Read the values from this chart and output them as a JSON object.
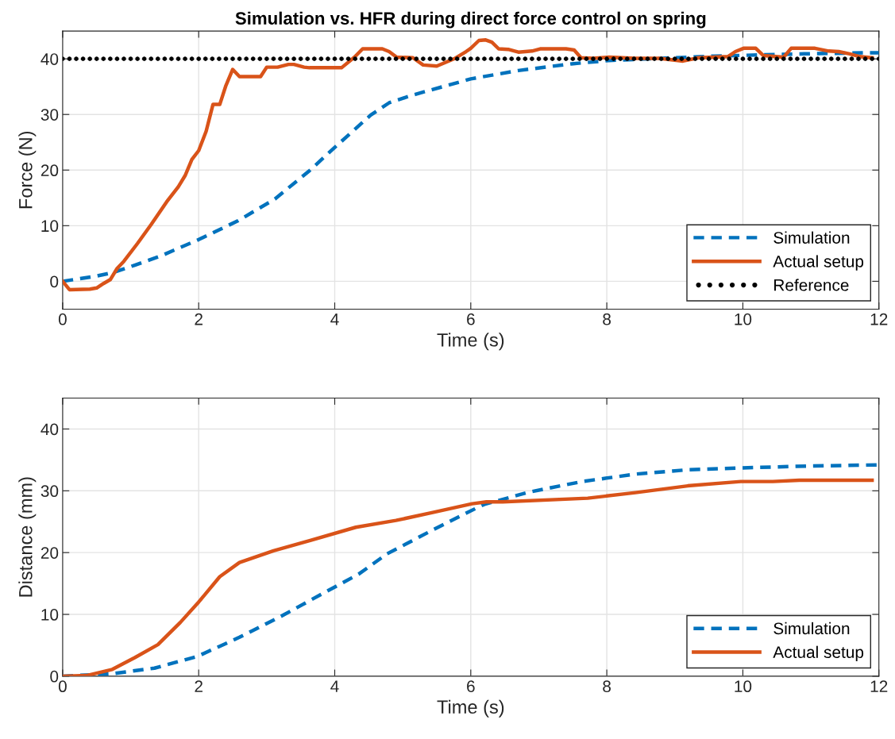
{
  "chart_data": [
    {
      "type": "line",
      "title": "Simulation vs. HFR during direct force control on spring",
      "xlabel": "Time (s)",
      "ylabel": "Force (N)",
      "xlim": [
        0,
        12
      ],
      "xticks": [
        0,
        2,
        4,
        6,
        8,
        10,
        12
      ],
      "ylim": [
        -5,
        45
      ],
      "yticks": [
        0,
        10,
        20,
        30,
        40
      ],
      "grid": true,
      "legend": "bottom right",
      "series": [
        {
          "name": "Simulation",
          "color": "#0072bd",
          "line_style": "dashed",
          "x": [
            0,
            0.48,
            0.75,
            1.06,
            1.45,
            2.0,
            2.58,
            3.12,
            3.63,
            4.02,
            4.53,
            4.8,
            5.15,
            6.0,
            6.7,
            7.48,
            8.03,
            9.58,
            10.9,
            11.88,
            12
          ],
          "values": [
            0,
            0.9,
            1.6,
            2.9,
            4.6,
            7.5,
            10.9,
            14.8,
            19.9,
            24.3,
            29.9,
            32.1,
            33.5,
            36.4,
            37.9,
            39.1,
            39.7,
            40.5,
            40.9,
            41.1,
            41.1
          ]
        },
        {
          "name": "Actual setup",
          "color": "#d95319",
          "line_style": "solid",
          "x": [
            0,
            0.1,
            0.4,
            0.5,
            0.6,
            0.7,
            0.8,
            0.9,
            1.1,
            1.3,
            1.53,
            1.7,
            1.8,
            1.9,
            2.0,
            2.11,
            2.21,
            2.31,
            2.4,
            2.5,
            2.6,
            2.91,
            3.0,
            3.16,
            3.32,
            3.4,
            3.55,
            3.63,
            4.1,
            4.29,
            4.41,
            4.7,
            4.8,
            4.91,
            5.15,
            5.3,
            5.5,
            5.77,
            5.93,
            6.0,
            6.12,
            6.22,
            6.31,
            6.41,
            6.55,
            6.7,
            6.9,
            7.02,
            7.4,
            7.52,
            7.62,
            7.8,
            8.03,
            8.42,
            8.77,
            9.12,
            9.35,
            9.78,
            9.89,
            10.01,
            10.19,
            10.3,
            10.6,
            10.71,
            11.06,
            11.26,
            11.41,
            11.57,
            11.72,
            11.9
          ],
          "values": [
            0,
            -1.5,
            -1.4,
            -1.2,
            -0.4,
            0.3,
            2.3,
            3.6,
            6.8,
            10.2,
            14.3,
            17,
            19,
            21.9,
            23.5,
            27,
            31.8,
            31.8,
            35.2,
            38.1,
            36.8,
            36.8,
            38.5,
            38.5,
            39,
            39,
            38.5,
            38.4,
            38.4,
            40.3,
            41.8,
            41.8,
            41.3,
            40.3,
            40.2,
            38.9,
            38.7,
            40.1,
            41.3,
            41.9,
            43.3,
            43.4,
            43.0,
            41.8,
            41.7,
            41.2,
            41.4,
            41.8,
            41.8,
            41.6,
            40.2,
            40.1,
            40.3,
            40.1,
            40.1,
            39.6,
            40.2,
            40.4,
            41.3,
            41.9,
            41.9,
            40.6,
            40.3,
            41.9,
            41.9,
            41.4,
            41.3,
            40.9,
            40.4,
            40.2
          ]
        },
        {
          "name": "Reference",
          "type": "scatter",
          "marker": "circle",
          "color": "#000000",
          "x": [
            0,
            0.1,
            0.2,
            0.3,
            0.4,
            0.5,
            0.6,
            0.7,
            0.8,
            0.9,
            1,
            1.1,
            1.2,
            1.3,
            1.4,
            1.5,
            1.6,
            1.7,
            1.8,
            1.9,
            2,
            2.1,
            2.2,
            2.3,
            2.4,
            2.5,
            2.6,
            2.7,
            2.8,
            2.9,
            3,
            3.1,
            3.2,
            3.3,
            3.4,
            3.5,
            3.6,
            3.7,
            3.8,
            3.9,
            4,
            4.1,
            4.2,
            4.3,
            4.4,
            4.5,
            4.6,
            4.7,
            4.8,
            4.9,
            5,
            5.1,
            5.2,
            5.3,
            5.4,
            5.5,
            5.6,
            5.7,
            5.8,
            5.9,
            6,
            6.1,
            6.2,
            6.3,
            6.4,
            6.5,
            6.6,
            6.7,
            6.8,
            6.9,
            7,
            7.1,
            7.2,
            7.3,
            7.4,
            7.5,
            7.6,
            7.7,
            7.8,
            7.9,
            8,
            8.1,
            8.2,
            8.3,
            8.4,
            8.5,
            8.6,
            8.7,
            8.8,
            8.9,
            9,
            9.1,
            9.2,
            9.3,
            9.4,
            9.5,
            9.6,
            9.7,
            9.8,
            9.9,
            10,
            10.1,
            10.2,
            10.3,
            10.4,
            10.5,
            10.6,
            10.7,
            10.8,
            10.9,
            11,
            11.1,
            11.2,
            11.3,
            11.4,
            11.5,
            11.6,
            11.7,
            11.8,
            11.9,
            12
          ],
          "values": [
            40,
            40,
            40,
            40,
            40,
            40,
            40,
            40,
            40,
            40,
            40,
            40,
            40,
            40,
            40,
            40,
            40,
            40,
            40,
            40,
            40,
            40,
            40,
            40,
            40,
            40,
            40,
            40,
            40,
            40,
            40,
            40,
            40,
            40,
            40,
            40,
            40,
            40,
            40,
            40,
            40,
            40,
            40,
            40,
            40,
            40,
            40,
            40,
            40,
            40,
            40,
            40,
            40,
            40,
            40,
            40,
            40,
            40,
            40,
            40,
            40,
            40,
            40,
            40,
            40,
            40,
            40,
            40,
            40,
            40,
            40,
            40,
            40,
            40,
            40,
            40,
            40,
            40,
            40,
            40,
            40,
            40,
            40,
            40,
            40,
            40,
            40,
            40,
            40,
            40,
            40,
            40,
            40,
            40,
            40,
            40,
            40,
            40,
            40,
            40,
            40,
            40,
            40,
            40,
            40,
            40,
            40,
            40,
            40,
            40,
            40,
            40,
            40,
            40,
            40,
            40,
            40,
            40,
            40,
            40,
            40
          ]
        }
      ]
    },
    {
      "type": "line",
      "xlabel": "Time (s)",
      "ylabel": "Distance (mm)",
      "xlim": [
        0,
        12
      ],
      "xticks": [
        0,
        2,
        4,
        6,
        8,
        10,
        12
      ],
      "ylim": [
        0,
        45
      ],
      "yticks": [
        0,
        10,
        20,
        30,
        40
      ],
      "grid": true,
      "legend": "bottom right",
      "series": [
        {
          "name": "Simulation",
          "color": "#0072bd",
          "line_style": "dashed",
          "x": [
            0,
            0.73,
            1.35,
            1.98,
            2.6,
            3.23,
            3.86,
            4.35,
            4.77,
            5.43,
            6.1,
            6.2,
            6.86,
            7.64,
            8.42,
            9.19,
            9.97,
            10.95,
            12.0
          ],
          "values": [
            0,
            0.4,
            1.3,
            3.2,
            6.3,
            9.8,
            13.6,
            16.5,
            19.8,
            23.6,
            27.3,
            27.8,
            29.8,
            31.5,
            32.7,
            33.4,
            33.7,
            34.0,
            34.2
          ]
        },
        {
          "name": "Actual setup",
          "color": "#d95319",
          "line_style": "solid",
          "x": [
            0,
            0.35,
            0.73,
            1.06,
            1.4,
            1.73,
            2.0,
            2.31,
            2.6,
            3.1,
            3.65,
            4.31,
            4.9,
            5.44,
            6.02,
            6.23,
            6.47,
            7.72,
            8.42,
            9.19,
            9.97,
            10.44,
            10.83,
            11.9
          ],
          "values": [
            0,
            0.1,
            1.1,
            3.0,
            5.1,
            8.7,
            12.0,
            16.1,
            18.4,
            20.3,
            22.0,
            24.1,
            25.2,
            26.5,
            27.9,
            28.2,
            28.2,
            28.8,
            29.7,
            30.8,
            31.5,
            31.5,
            31.7,
            31.7
          ]
        }
      ]
    }
  ]
}
